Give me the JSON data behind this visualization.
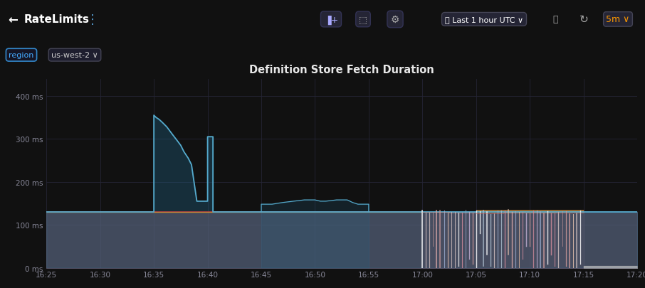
{
  "title": "Definition Store Fetch Duration",
  "bg_color": "#111111",
  "plot_bg_color": "#111111",
  "grid_color": "#252535",
  "title_color": "#e8e8e8",
  "tick_color": "#888899",
  "ylim": [
    0,
    440
  ],
  "yticks": [
    0,
    100,
    200,
    300,
    400
  ],
  "ytick_labels": [
    "0 ms",
    "100 ms",
    "200 ms",
    "300 ms",
    "400 ms"
  ],
  "xtick_labels": [
    "16:25",
    "16:30",
    "16:35",
    "16:40",
    "16:45",
    "16:50",
    "16:55",
    "17:00",
    "17:05",
    "17:10",
    "17:15",
    "17:20"
  ],
  "xtick_positions": [
    0,
    5,
    10,
    15,
    20,
    25,
    30,
    35,
    40,
    45,
    50,
    55
  ],
  "header_bg": "#161616",
  "header_title": "RateLimits",
  "region_label": "region",
  "region_value": "us-west-2",
  "fill_color": "#8a6070",
  "fill_alpha": 0.55,
  "baseline": 130,
  "blue_line_color": "#55aacc",
  "blue_fill_color": "#226688",
  "orange_line_color": "#cc8833",
  "red_line_color": "#cc4444"
}
